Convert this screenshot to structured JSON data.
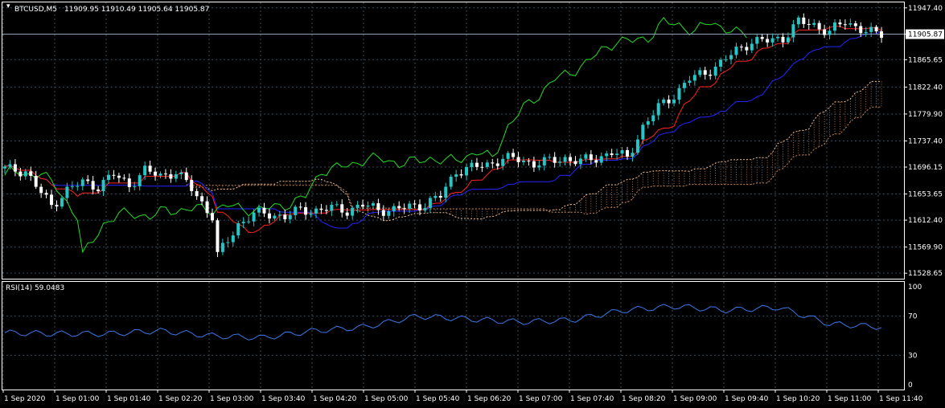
{
  "header": {
    "symbol": "BTCUSD,M5",
    "ohlc": "11909.95 11910.49 11905.64 11905.87"
  },
  "colors": {
    "background": "#000000",
    "bull_candle": "#26c6c6",
    "bear_candle": "#ffffff",
    "tenkan": "#ff2020",
    "kijun": "#2424ff",
    "chikou": "#22dd22",
    "senkou_a": "#e8b890",
    "senkou_b": "#c88858",
    "rsi": "#3b78e8",
    "grid": "#3a4a5a",
    "bid_line": "#8aa0b4"
  },
  "chart_data": [
    {
      "type": "candlestick",
      "title": "BTCUSD,M5",
      "indicators": [
        "Ichimoku Kinko Hyo"
      ],
      "price_axis_ticks": [
        "11947.40",
        "11905.87",
        "11865.65",
        "11822.40",
        "11779.90",
        "11737.40",
        "11696.15",
        "11653.65",
        "11612.40",
        "11569.90",
        "11528.65"
      ],
      "current_price": 11905.87,
      "price_range": [
        11520,
        11956
      ],
      "approx_close_path": [
        [
          0,
          11693
        ],
        [
          4,
          11690
        ],
        [
          7,
          11655
        ],
        [
          9,
          11635
        ],
        [
          12,
          11660
        ],
        [
          15,
          11672
        ],
        [
          18,
          11666
        ],
        [
          21,
          11684
        ],
        [
          24,
          11668
        ],
        [
          27,
          11690
        ],
        [
          30,
          11683
        ],
        [
          33,
          11688
        ],
        [
          36,
          11662
        ],
        [
          38,
          11640
        ],
        [
          40,
          11618
        ],
        [
          41,
          11556
        ],
        [
          43,
          11580
        ],
        [
          45,
          11606
        ],
        [
          48,
          11622
        ],
        [
          51,
          11622
        ],
        [
          54,
          11618
        ],
        [
          57,
          11628
        ],
        [
          60,
          11628
        ],
        [
          63,
          11631
        ],
        [
          66,
          11628
        ],
        [
          69,
          11636
        ],
        [
          72,
          11629
        ],
        [
          75,
          11629
        ],
        [
          78,
          11633
        ],
        [
          81,
          11638
        ],
        [
          84,
          11650
        ],
        [
          87,
          11690
        ],
        [
          90,
          11695
        ],
        [
          93,
          11700
        ],
        [
          96,
          11710
        ],
        [
          99,
          11708
        ],
        [
          102,
          11702
        ],
        [
          105,
          11705
        ],
        [
          108,
          11710
        ],
        [
          111,
          11705
        ],
        [
          114,
          11710
        ],
        [
          117,
          11720
        ],
        [
          120,
          11710
        ],
        [
          123,
          11760
        ],
        [
          126,
          11790
        ],
        [
          129,
          11810
        ],
        [
          132,
          11835
        ],
        [
          135,
          11845
        ],
        [
          138,
          11860
        ],
        [
          141,
          11880
        ],
        [
          144,
          11895
        ],
        [
          147,
          11895
        ],
        [
          150,
          11900
        ],
        [
          153,
          11925
        ],
        [
          156,
          11920
        ],
        [
          159,
          11910
        ],
        [
          162,
          11925
        ],
        [
          165,
          11915
        ],
        [
          168,
          11905
        ]
      ]
    },
    {
      "type": "line",
      "title": "RSI(14) 59.0483",
      "ylim": [
        0,
        100
      ],
      "y_ticks": [
        "100",
        "70",
        "30",
        "0"
      ],
      "x": [
        "1 Sep 2020",
        "1 Sep 01:00",
        "1 Sep 01:40",
        "1 Sep 02:20",
        "1 Sep 03:00",
        "1 Sep 03:40",
        "1 Sep 04:20",
        "1 Sep 05:00",
        "1 Sep 05:40",
        "1 Sep 06:20",
        "1 Sep 07:00",
        "1 Sep 07:40",
        "1 Sep 08:20",
        "1 Sep 09:00",
        "1 Sep 09:40",
        "1 Sep 10:20",
        "1 Sep 11:00",
        "1 Sep 11:40"
      ],
      "series": [
        {
          "name": "RSI(14)",
          "values": [
            53,
            52,
            52,
            55,
            50,
            48,
            55,
            59,
            70,
            67,
            64,
            66,
            76,
            80,
            76,
            79,
            62,
            59
          ]
        }
      ]
    }
  ],
  "time_axis": [
    "1 Sep 2020",
    "1 Sep 01:00",
    "1 Sep 01:40",
    "1 Sep 02:20",
    "1 Sep 03:00",
    "1 Sep 03:40",
    "1 Sep 04:20",
    "1 Sep 05:00",
    "1 Sep 05:40",
    "1 Sep 06:20",
    "1 Sep 07:00",
    "1 Sep 07:40",
    "1 Sep 08:20",
    "1 Sep 09:00",
    "1 Sep 09:40",
    "1 Sep 10:20",
    "1 Sep 11:00",
    "1 Sep 11:40"
  ]
}
